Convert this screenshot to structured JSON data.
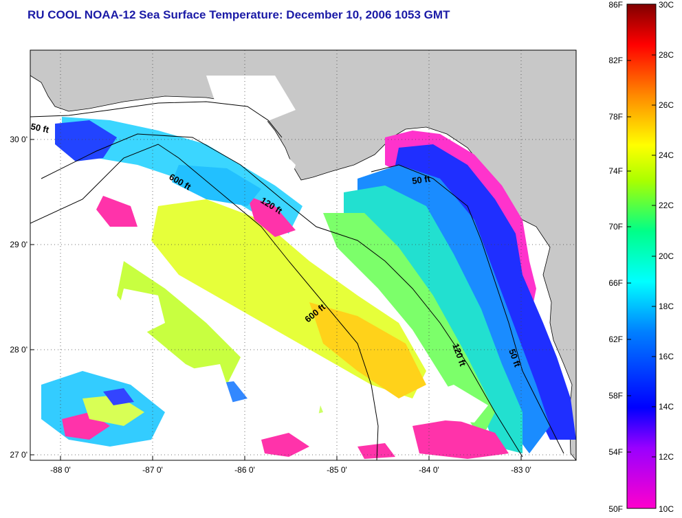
{
  "title": "RU COOL  NOAA-12  Sea Surface Temperature:  December 10, 2006 1053 GMT",
  "map": {
    "lat_ticks": [
      "30 0'",
      "29 0'",
      "28 0'",
      "27 0'"
    ],
    "lon_ticks": [
      "-88 0'",
      "-87 0'",
      "-86 0'",
      "-85 0'",
      "-84 0'",
      "-83 0'"
    ],
    "contour_labels": {
      "c50_west": "50 ft",
      "c600_north": "600 ft",
      "c120_north": "120 ft",
      "c50_east": "50 ft",
      "c600_south": "600 ft",
      "c120_south": "120 ft",
      "c50_south": "50 ft"
    }
  },
  "colorbar": {
    "fahrenheit_labels": [
      "86F",
      "82F",
      "78F",
      "74F",
      "70F",
      "66F",
      "62F",
      "58F",
      "54F",
      "50F"
    ],
    "celsius_labels": [
      "30C",
      "28C",
      "26C",
      "24C",
      "22C",
      "20C",
      "18C",
      "16C",
      "14C",
      "12C",
      "10C"
    ],
    "colors": [
      "#ff00cc",
      "#7f00ff",
      "#0000ff",
      "#0080ff",
      "#00ffff",
      "#00ff80",
      "#ffff00",
      "#ff8000",
      "#ff0000",
      "#800000"
    ]
  },
  "colors": {
    "title": "#1a1aa6",
    "land": "#c8c8c8",
    "cloud": "#ffffff",
    "cold_pink": "#ff33aa"
  }
}
